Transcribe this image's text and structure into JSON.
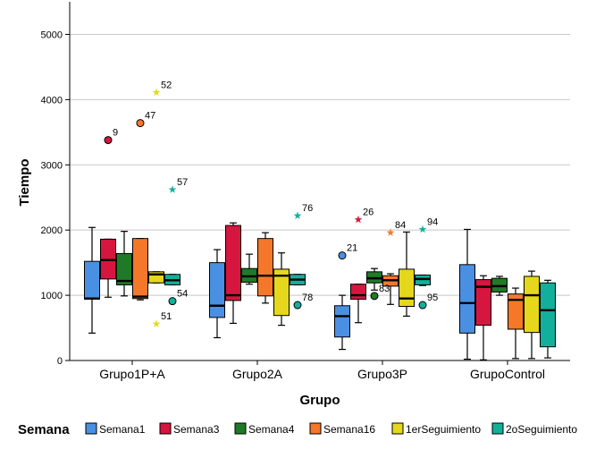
{
  "chart_data": {
    "type": "boxplot",
    "xlabel": "Grupo",
    "ylabel": "Tiempo",
    "ylim": [
      0,
      5500
    ],
    "yticks": [
      0,
      1000,
      2000,
      3000,
      4000,
      5000
    ],
    "grid": "horizontal",
    "legend": {
      "title": "Semana",
      "placement": "bottom"
    },
    "categories": [
      "Grupo1P+A",
      "Grupo2A",
      "Grupo3P",
      "GrupoControl"
    ],
    "series": [
      {
        "name": "Semana1",
        "color": "#4a90e2",
        "boxes": [
          {
            "min": 420,
            "q1": 940,
            "median": 950,
            "q3": 1520,
            "max": 2040
          },
          {
            "min": 350,
            "q1": 660,
            "median": 840,
            "q3": 1500,
            "max": 1700
          },
          {
            "min": 170,
            "q1": 360,
            "median": 680,
            "q3": 840,
            "max": 1000
          },
          {
            "min": 20,
            "q1": 420,
            "median": 880,
            "q3": 1470,
            "max": 2010
          }
        ]
      },
      {
        "name": "Semana3",
        "color": "#d6163e",
        "boxes": [
          {
            "min": 970,
            "q1": 1250,
            "median": 1540,
            "q3": 1860,
            "max": 1860
          },
          {
            "min": 570,
            "q1": 920,
            "median": 1000,
            "q3": 2070,
            "max": 2110
          },
          {
            "min": 580,
            "q1": 940,
            "median": 1000,
            "q3": 1170,
            "max": 1170
          },
          {
            "min": 10,
            "q1": 540,
            "median": 1130,
            "q3": 1240,
            "max": 1300
          }
        ]
      },
      {
        "name": "Semana4",
        "color": "#1f7a27",
        "boxes": [
          {
            "min": 990,
            "q1": 1160,
            "median": 1220,
            "q3": 1640,
            "max": 1980
          },
          {
            "min": 1170,
            "q1": 1200,
            "median": 1290,
            "q3": 1410,
            "max": 1630
          },
          {
            "min": 1080,
            "q1": 1190,
            "median": 1260,
            "q3": 1360,
            "max": 1410
          },
          {
            "min": 1000,
            "q1": 1050,
            "median": 1140,
            "q3": 1260,
            "max": 1290
          }
        ]
      },
      {
        "name": "Semana16",
        "color": "#f5782a",
        "boxes": [
          {
            "min": 930,
            "q1": 950,
            "median": 980,
            "q3": 1870,
            "max": 1870
          },
          {
            "min": 880,
            "q1": 990,
            "median": 1300,
            "q3": 1870,
            "max": 1960
          },
          {
            "min": 860,
            "q1": 1140,
            "median": 1230,
            "q3": 1300,
            "max": 1330
          },
          {
            "min": 30,
            "q1": 480,
            "median": 930,
            "q3": 1020,
            "max": 1110
          }
        ]
      },
      {
        "name": "1erSeguimiento",
        "color": "#e5d81c",
        "boxes": [
          {
            "min": 1190,
            "q1": 1190,
            "median": 1320,
            "q3": 1360,
            "max": 1360
          },
          {
            "min": 540,
            "q1": 690,
            "median": 1300,
            "q3": 1400,
            "max": 1650
          },
          {
            "min": 680,
            "q1": 830,
            "median": 950,
            "q3": 1400,
            "max": 1970
          },
          {
            "min": 30,
            "q1": 430,
            "median": 1000,
            "q3": 1290,
            "max": 1370
          }
        ]
      },
      {
        "name": "2oSeguimiento",
        "color": "#12b09a",
        "boxes": [
          {
            "min": 1160,
            "q1": 1160,
            "median": 1230,
            "q3": 1320,
            "max": 1320
          },
          {
            "min": 1160,
            "q1": 1160,
            "median": 1240,
            "q3": 1320,
            "max": 1320
          },
          {
            "min": 1150,
            "q1": 1160,
            "median": 1250,
            "q3": 1310,
            "max": 1310
          },
          {
            "min": 40,
            "q1": 210,
            "median": 770,
            "q3": 1190,
            "max": 1230
          }
        ]
      }
    ],
    "outliers": [
      {
        "group": 0,
        "series": 1,
        "value": 3380,
        "label": "9",
        "marker": "circle"
      },
      {
        "group": 0,
        "series": 3,
        "value": 3640,
        "label": "47",
        "marker": "circle"
      },
      {
        "group": 0,
        "series": 4,
        "value": 4110,
        "label": "52",
        "marker": "star"
      },
      {
        "group": 0,
        "series": 4,
        "value": 560,
        "label": "51",
        "marker": "star"
      },
      {
        "group": 0,
        "series": 5,
        "value": 2620,
        "label": "57",
        "marker": "star"
      },
      {
        "group": 0,
        "series": 5,
        "value": 910,
        "label": "54",
        "marker": "circle"
      },
      {
        "group": 1,
        "series": 5,
        "value": 2220,
        "label": "76",
        "marker": "star"
      },
      {
        "group": 1,
        "series": 5,
        "value": 850,
        "label": "78",
        "marker": "circle"
      },
      {
        "group": 2,
        "series": 0,
        "value": 1610,
        "label": "21",
        "marker": "circle"
      },
      {
        "group": 2,
        "series": 1,
        "value": 2160,
        "label": "26",
        "marker": "star"
      },
      {
        "group": 2,
        "series": 2,
        "value": 990,
        "label": "83",
        "marker": "circle"
      },
      {
        "group": 2,
        "series": 3,
        "value": 1960,
        "label": "84",
        "marker": "star"
      },
      {
        "group": 2,
        "series": 5,
        "value": 2010,
        "label": "94",
        "marker": "star"
      },
      {
        "group": 2,
        "series": 5,
        "value": 850,
        "label": "95",
        "marker": "circle"
      }
    ]
  }
}
